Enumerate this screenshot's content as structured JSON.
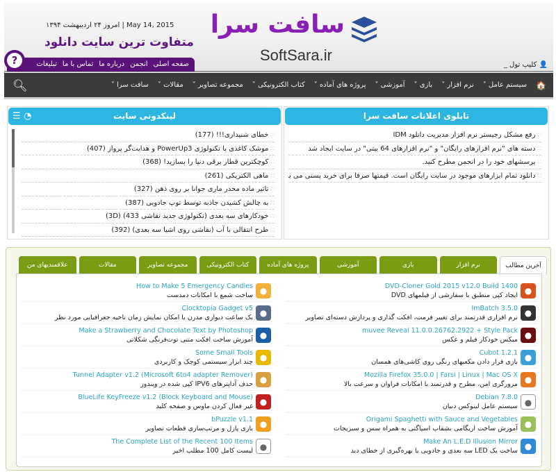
{
  "header": {
    "date": "امروز ۲۴ اردیبهشت ۱۳۹۴ | May 14, 2015",
    "slogan": "متفاوت ترین سایت دانلود",
    "logo_fa": "سافت سرا",
    "logo_en": "SoftSara.ir",
    "help": "?",
    "user": "کلیپ تول _",
    "topnav": [
      "صفحه اصلی",
      "انجمن",
      "درباره ما",
      "تماس با ما",
      "تبلیغات"
    ]
  },
  "mainnav": [
    "سیستم عامل ˅",
    "نرم افزار ˅",
    "بازی ˅",
    "آموزشی ˅",
    "پروژه های آماده ˅",
    "کتاب الکترونیکی ˅",
    "مجموعه تصاویر ˅",
    "مقالات ˅",
    "سافت سرا ˅"
  ],
  "notice": {
    "title": "تابلوی اعلانات سافت سرا",
    "items": [
      "رفع مشکل رجیستر نرم افزار مدیریت دانلود IDM",
      "دسته های \"نرم افزارهای رایگان\" و \"نرم افزارهای 64 بیتی\" در سایت ایجاد شد",
      "پرسشهای خود را در انجمن مطرح کنید.",
      "دانلود تمام ابزارهای موجود در سایت رایگان است. قیمتها صرفا برای خرید پستی می باشد."
    ]
  },
  "links": {
    "title": "لینکدونی سایت",
    "items": [
      "خطای شنیداری!!!  (177)",
      "موشک کاغذی با تکنولوژی PowerUp3 و هدایت‌گر پرواز  (407)",
      "کوچکترین قطار برقی دنیا را بسازید!  (368)",
      "ماهی الکتریکی  (261)",
      "تاثیر ماده مخدر ماری جوانا بر روی ذهن  (327)",
      "به چالش کشیدن جاذبه توسط توپ جادویی  (387)",
      "خودکارهای سه بعدی (تکنولوژی جدید نقاشی 433)  (3D)",
      "طرح انتقالی با آب (نقاشی روی اشیا سه بعدی)  (392)"
    ]
  },
  "tabs": [
    "آخرین مطالب",
    "نرم افزار",
    "بازی",
    "آموزشی",
    "پروژه های آماده",
    "کتاب الکترونیکی",
    "مجموعه تصاویر",
    "مقالات",
    "علاقمندیهای من"
  ],
  "right_items": [
    {
      "title": "DVD-Cloner Gold 2015 v12.0 Build 1400",
      "desc": "ایجاد کپی منطبق با سفارشی از فیلمهای DVD",
      "icon": "film-reel-icon",
      "color": "#d9531e"
    },
    {
      "title": "ImBatch 3.5.0",
      "desc": "نرم افزاری قدرتمند برای تغییر فرمت، افکت گذاری و پردازش دسته‌ای تصاویر",
      "icon": "b-circle-icon",
      "color": "#333"
    },
    {
      "title": "muvee Reveal 11.0.0.26762.2922 + Style Pack",
      "desc": "میکس خودکار فیلم و عکس",
      "icon": "clapper-icon",
      "color": "#6a0f0f"
    },
    {
      "title": "Cubot 1.2.1",
      "desc": "بازی قرار دادن مکعبهای رنگی روی کاشی‌های همسان",
      "icon": "cube-app-icon",
      "color": "#3aa0d8"
    },
    {
      "title": "Mozilla Firefox 35.0.0 | Farsi | Linux | Mac OS X",
      "desc": "مرورگری امن، مطرح و قدرتمند با امکانات فراوان و سرعت بالا",
      "icon": "firefox-icon",
      "color": "#e8761e"
    },
    {
      "title": "Debian 7.8.0",
      "desc": "سیستم عامل لینوکس دبیان",
      "icon": "debian-icon",
      "color": "#fff"
    },
    {
      "title": "Origami Spaghetti with Sauce and Vegetables",
      "desc": "آموزش ساخت اریگامی بشقاب اسپاگتی به همراه سس و سبزیجات",
      "icon": "plate-icon",
      "color": "#9bbf5a"
    },
    {
      "title": "Make An L.E.D Illusion Mirror",
      "desc": "ساخت یک LED سه بعدی و جادویی با بهره‌گیری از خطای دید",
      "icon": "blue-cube-icon",
      "color": "#2f8ad8"
    }
  ],
  "left_items": [
    {
      "title": "How to Make 5 Emergency Candles",
      "desc": "ساخت شمع با امکانات دمدست",
      "icon": "candle-icon",
      "color": "#f0b23a"
    },
    {
      "title": "Clocktopia Gadget v5",
      "desc": "یک ساعت دیواری مدرن با امکان نمایش زمان ناحیه جغرافیایی مورد نظر",
      "icon": "clock-icon",
      "color": "#5b6b8a"
    },
    {
      "title": "Make a Strawberry and Chocolate Text by Photoshop",
      "desc": "آموزش ساخت افکت متنی توت‌فرنگی شکلاتی",
      "icon": "photoshop-icon",
      "color": "#1c5fa8"
    },
    {
      "title": "Some Small Tools",
      "desc": "چند ابزار سیستمی کوچک و کاربردی",
      "icon": "gear-icon",
      "color": "#e8b800"
    },
    {
      "title": "Tunnel Adapter v1.2 (Microsoft 6to4 adapter Remover)",
      "desc": "حذف آداپترهای IPV6 کپی شده در ویندوز",
      "icon": "broom-icon",
      "color": "#d8a040"
    },
    {
      "title": "BlueLife KeyFreeze v1.2 (Block Keyboard and Mouse)",
      "desc": "غیر فعال کردن ماوس و صفحه کلید",
      "icon": "lock-icon",
      "color": "#c02020"
    },
    {
      "title": "bPuzzle v1.1",
      "desc": "بازی پازل و مرتب‌سازی قطعات تصاویر",
      "icon": "puzzle-icon",
      "color": "#f0a020"
    },
    {
      "title": "The Complete List of the Recent 100 Items",
      "desc": "لیست کامل 100 مطلب اخیر",
      "icon": "100-icon",
      "color": "#fff"
    }
  ]
}
